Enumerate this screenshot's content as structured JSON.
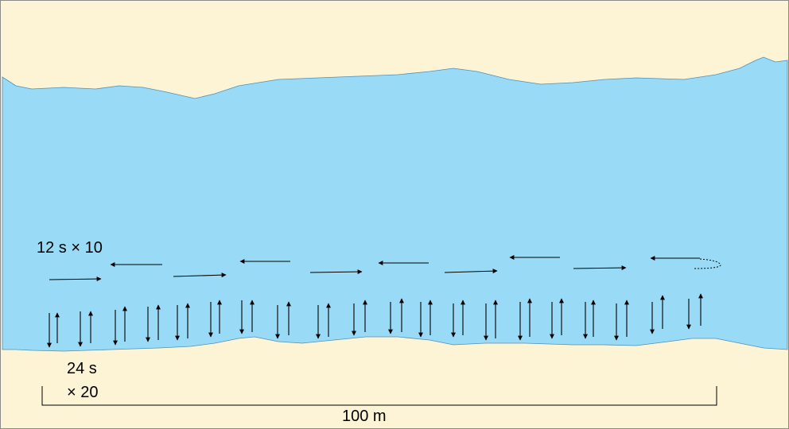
{
  "colors": {
    "sand": "#fdf4d6",
    "water": "#99dbf6",
    "shore_line": "#4f8fb8",
    "arrow": "#000000",
    "frame": "#8a8a8a"
  },
  "labels": {
    "parallel_run": "12 s × 10",
    "perpendicular_time": "24 s",
    "perpendicular_count": "× 20",
    "scale": "100 m"
  }
}
